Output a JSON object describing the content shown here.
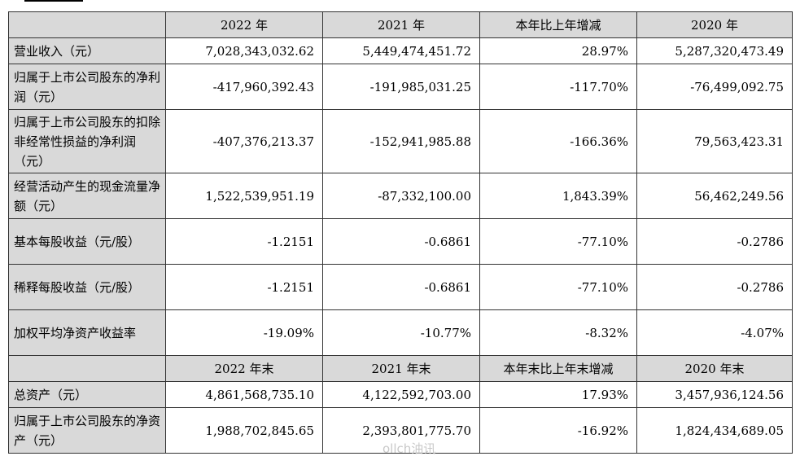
{
  "header1": [
    "",
    "2022 年",
    "2021 年",
    "本年比上年增减",
    "2020 年"
  ],
  "rows1": [
    {
      "label": "营业收入（元）",
      "v": [
        "7,028,343,032.62",
        "5,449,474,451.72",
        "28.97%",
        "5,287,320,473.49"
      ]
    },
    {
      "label": "归属于上市公司股东的净利润（元）",
      "v": [
        "-417,960,392.43",
        "-191,985,031.25",
        "-117.70%",
        "-76,499,092.75"
      ]
    },
    {
      "label": "归属于上市公司股东的扣除非经常性损益的净利润（元）",
      "v": [
        "-407,376,213.37",
        "-152,941,985.88",
        "-166.36%",
        "79,563,423.31"
      ]
    },
    {
      "label": "经营活动产生的现金流量净额（元）",
      "v": [
        "1,522,539,951.19",
        "-87,332,100.00",
        "1,843.39%",
        "56,462,249.56"
      ]
    },
    {
      "label": "基本每股收益（元/股）",
      "v": [
        "-1.2151",
        "-0.6861",
        "-77.10%",
        "-0.2786"
      ]
    },
    {
      "label": "稀释每股收益（元/股）",
      "v": [
        "-1.2151",
        "-0.6861",
        "-77.10%",
        "-0.2786"
      ]
    },
    {
      "label": "加权平均净资产收益率",
      "v": [
        "-19.09%",
        "-10.77%",
        "-8.32%",
        "-4.07%"
      ]
    }
  ],
  "header2": [
    "",
    "2022 年末",
    "2021 年末",
    "本年末比上年末增减",
    "2020 年末"
  ],
  "rows2": [
    {
      "label": "总资产（元）",
      "v": [
        "4,861,568,735.10",
        "4,122,592,703.00",
        "17.93%",
        "3,457,936,124.56"
      ]
    },
    {
      "label": "归属于上市公司股东的净资产（元）",
      "v": [
        "1,988,702,845.65",
        "2,393,801,775.70",
        "-16.92%",
        "1,824,434,689.05"
      ]
    }
  ],
  "watermark": "ollch油讯"
}
